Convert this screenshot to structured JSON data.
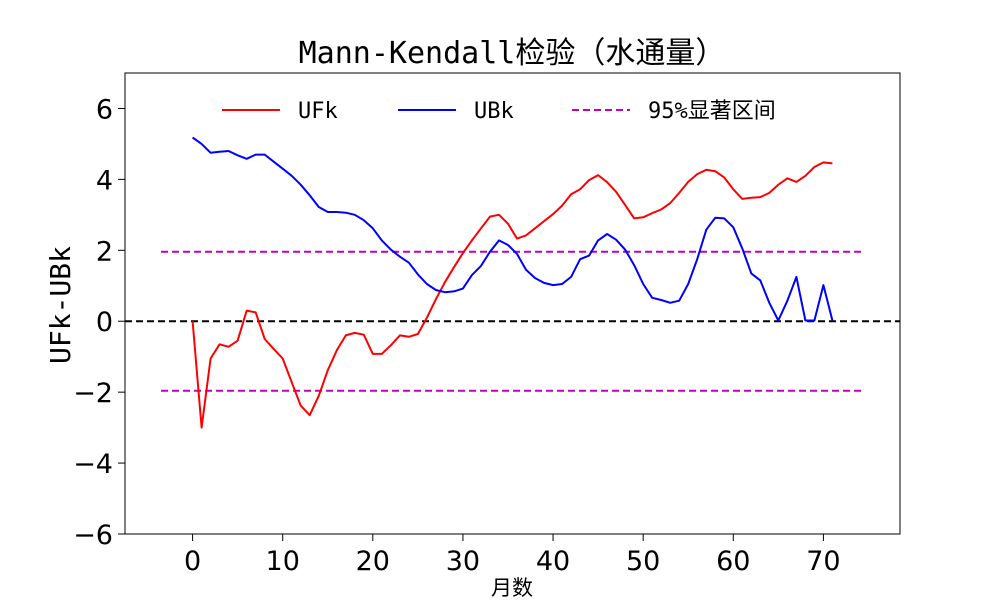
{
  "chart_data": {
    "type": "line",
    "title": "Mann-Kendall检验（水通量）",
    "xlabel": "月数",
    "ylabel": "UFk-UBk",
    "xlim": [
      -7.5,
      78.5
    ],
    "ylim": [
      -6,
      7
    ],
    "xticks": [
      0,
      10,
      20,
      30,
      40,
      50,
      60,
      70
    ],
    "yticks": [
      -6,
      -4,
      -2,
      0,
      2,
      4,
      6
    ],
    "ytick_labels": [
      "−6",
      "−4",
      "−2",
      "0",
      "2",
      "4",
      "6"
    ],
    "grid": false,
    "legend_position": "top",
    "colors": {
      "ufk": "#ff0000",
      "ubk": "#0000ff",
      "ci": "#bf00bf",
      "zero": "#000000"
    },
    "series": [
      {
        "name": "UFk",
        "color": "#ff0000",
        "style": "solid",
        "x": [
          0,
          1,
          2,
          3,
          4,
          5,
          6,
          7,
          8,
          9,
          10,
          11,
          12,
          13,
          14,
          15,
          16,
          17,
          18,
          19,
          20,
          21,
          22,
          23,
          24,
          25,
          26,
          27,
          28,
          29,
          30,
          31,
          32,
          33,
          34,
          35,
          36,
          37,
          38,
          39,
          40,
          41,
          42,
          43,
          44,
          45,
          46,
          47,
          48,
          49,
          50,
          51,
          52,
          53,
          54,
          55,
          56,
          57,
          58,
          59,
          60,
          61,
          62,
          63,
          64,
          65,
          66,
          67,
          68,
          69,
          70,
          71
        ],
        "values": [
          0,
          -3.0,
          -1.05,
          -0.65,
          -0.72,
          -0.55,
          0.3,
          0.25,
          -0.5,
          -0.78,
          -1.05,
          -1.72,
          -2.38,
          -2.65,
          -2.1,
          -1.38,
          -0.82,
          -0.4,
          -0.33,
          -0.38,
          -0.92,
          -0.92,
          -0.68,
          -0.4,
          -0.44,
          -0.36,
          0.1,
          0.62,
          1.1,
          1.52,
          1.92,
          2.28,
          2.62,
          2.95,
          3.0,
          2.75,
          2.33,
          2.42,
          2.62,
          2.82,
          3.02,
          3.26,
          3.58,
          3.72,
          3.98,
          4.12,
          3.92,
          3.65,
          3.28,
          2.9,
          2.93,
          3.05,
          3.15,
          3.33,
          3.62,
          3.93,
          4.15,
          4.27,
          4.23,
          4.05,
          3.72,
          3.45,
          3.48,
          3.5,
          3.62,
          3.85,
          4.03,
          3.93,
          4.1,
          4.35,
          4.48,
          4.45
        ]
      },
      {
        "name": "UBk",
        "color": "#0000ff",
        "style": "solid",
        "x": [
          0,
          1,
          2,
          3,
          4,
          5,
          6,
          7,
          8,
          9,
          10,
          11,
          12,
          13,
          14,
          15,
          16,
          17,
          18,
          19,
          20,
          21,
          22,
          23,
          24,
          25,
          26,
          27,
          28,
          29,
          30,
          31,
          32,
          33,
          34,
          35,
          36,
          37,
          38,
          39,
          40,
          41,
          42,
          43,
          44,
          45,
          46,
          47,
          48,
          49,
          50,
          51,
          52,
          53,
          54,
          55,
          56,
          57,
          58,
          59,
          60,
          61,
          62,
          63,
          64,
          65,
          66,
          67,
          68,
          69,
          70,
          71
        ],
        "values": [
          5.18,
          5.0,
          4.75,
          4.78,
          4.8,
          4.68,
          4.58,
          4.7,
          4.7,
          4.5,
          4.3,
          4.1,
          3.85,
          3.55,
          3.22,
          3.08,
          3.08,
          3.06,
          3.0,
          2.85,
          2.62,
          2.28,
          2.02,
          1.82,
          1.65,
          1.32,
          1.05,
          0.88,
          0.82,
          0.84,
          0.92,
          1.3,
          1.56,
          1.96,
          2.28,
          2.15,
          1.9,
          1.45,
          1.22,
          1.08,
          1.02,
          1.05,
          1.25,
          1.75,
          1.85,
          2.28,
          2.46,
          2.3,
          2.02,
          1.58,
          1.05,
          0.66,
          0.6,
          0.52,
          0.58,
          1.05,
          1.75,
          2.58,
          2.92,
          2.9,
          2.65,
          2.05,
          1.35,
          1.15,
          0.52,
          0.02,
          0.58,
          1.25,
          0.02,
          0.02,
          1.02,
          0.02
        ]
      },
      {
        "name": "95%显著区间",
        "color": "#bf00bf",
        "style": "dashed",
        "x": [
          -3.5,
          74.5
        ],
        "upper": 1.96,
        "lower": -1.96
      }
    ],
    "reference_lines": [
      {
        "y": 0,
        "color": "#000000",
        "style": "dashed",
        "x_from": -7.5,
        "x_to": 78.5
      }
    ]
  }
}
